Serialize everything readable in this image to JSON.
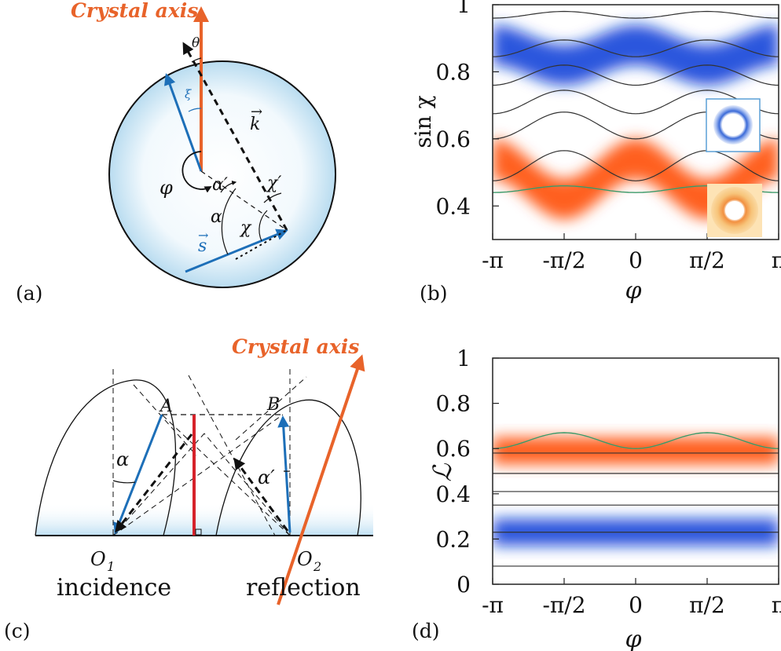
{
  "panels": {
    "a": {
      "label": "(a)",
      "crystal_axis": "Crystal axis",
      "theta": "θ",
      "xi": "ξ",
      "k": "k",
      "phi": "φ",
      "alpha_prime": "α′",
      "chi_prime": "χ′",
      "alpha": "α",
      "chi": "χ",
      "s": "s"
    },
    "b": {
      "label": "(b)",
      "ylabel": "sin χ",
      "xlabel": "φ",
      "yticks": [
        "1",
        "0.8",
        "0.6",
        "0.4"
      ],
      "xticks": [
        "-π",
        "-π/2",
        "0",
        "π/2",
        "π"
      ]
    },
    "c": {
      "label": "(c)",
      "crystal_axis": "Crystal axis",
      "A": "A",
      "B": "B",
      "alpha": "α",
      "alpha_prime": "α′",
      "O1": "O",
      "O1_sub": "1",
      "O2": "O",
      "O2_sub": "2",
      "incidence": "incidence",
      "reflection": "reflection"
    },
    "d": {
      "label": "(d)",
      "ylabel": "ℒ",
      "xlabel": "φ",
      "yticks": [
        "1",
        "0.8",
        "0.6",
        "0.4",
        "0.2",
        "0"
      ],
      "xticks": [
        "-π",
        "-π/2",
        "0",
        "π/2",
        "π"
      ]
    }
  },
  "chart_data": [
    {
      "type": "heatmap",
      "panel": "b",
      "xlabel": "φ",
      "ylabel": "sin χ",
      "xlim": [
        -3.1416,
        3.1416
      ],
      "ylim": [
        0.3,
        1.0
      ],
      "x_ticks": [
        "-π",
        "-π/2",
        "0",
        "π/2",
        "π"
      ],
      "y_ticks": [
        1,
        0.8,
        0.6,
        0.4
      ],
      "bands": [
        {
          "color": "#1240d8",
          "center": 0.85,
          "amplitude": 0.03
        },
        {
          "color": "#ff4a00",
          "center": 0.48,
          "amplitude": 0.06
        }
      ],
      "black_curves": [
        {
          "mean": 0.97,
          "amp": 0.01
        },
        {
          "mean": 0.87,
          "amp": 0.025
        },
        {
          "mean": 0.79,
          "amp": 0.03
        },
        {
          "mean": 0.71,
          "amp": 0.035
        },
        {
          "mean": 0.64,
          "amp": 0.04
        },
        {
          "mean": 0.52,
          "amp": 0.045
        }
      ],
      "green_curve": {
        "mean": 0.45,
        "amp": 0.01
      },
      "insets": [
        "blue-ring",
        "orange-ring"
      ],
      "colors": {
        "blue": "#1a48e0",
        "orange": "#ff4d0a",
        "green": "#3a9a6a"
      }
    },
    {
      "type": "heatmap",
      "panel": "d",
      "xlabel": "φ",
      "ylabel": "ℒ",
      "xlim": [
        -3.1416,
        3.1416
      ],
      "ylim": [
        0,
        1.0
      ],
      "x_ticks": [
        "-π",
        "-π/2",
        "0",
        "π/2",
        "π"
      ],
      "y_ticks": [
        1,
        0.8,
        0.6,
        0.4,
        0.2,
        0
      ],
      "bands": [
        {
          "color": "#ff4a00",
          "center": 0.59,
          "amplitude": 0.0
        },
        {
          "color": "#1240d8",
          "center": 0.23,
          "amplitude": 0.0
        }
      ],
      "black_lines": [
        0.58,
        0.49,
        0.41,
        0.35,
        0.23,
        0.08
      ],
      "green_curve": {
        "mean": 0.635,
        "amp": 0.035
      },
      "colors": {
        "blue": "#1a48e0",
        "orange": "#ff4d0a",
        "green": "#3a9a6a"
      }
    }
  ]
}
